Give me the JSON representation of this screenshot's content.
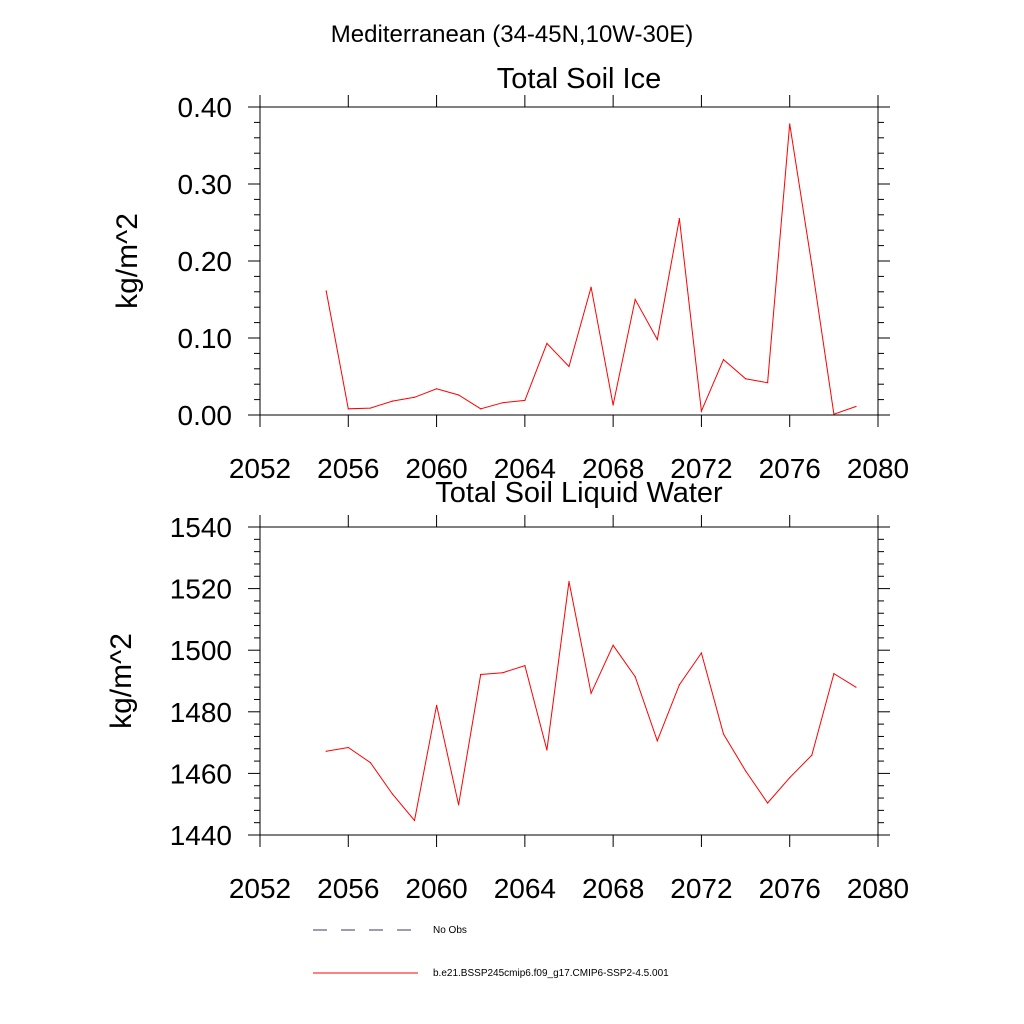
{
  "figure": {
    "title": "Mediterranean (34-45N,10W-30E)"
  },
  "legend": {
    "entries": [
      {
        "label": "No Obs",
        "style": "dashed",
        "color": "#3a3a6a"
      },
      {
        "label": "b.e21.BSSP245cmip6.f09_g17.CMIP6-SSP2-4.5.001",
        "style": "solid",
        "color": "#ff0000"
      }
    ]
  },
  "chart_data": [
    {
      "type": "line",
      "title": "Total Soil Ice",
      "xlabel": "",
      "ylabel": "kg/m^2",
      "xlim": [
        2052,
        2080
      ],
      "ylim": [
        0,
        0.4
      ],
      "xticks": [
        "2052",
        "2056",
        "2060",
        "2064",
        "2068",
        "2072",
        "2076",
        "2080"
      ],
      "yticks": [
        "0.00",
        "0.10",
        "0.20",
        "0.30",
        "0.40"
      ],
      "grid": false,
      "x": [
        2055,
        2056,
        2057,
        2058,
        2059,
        2060,
        2061,
        2062,
        2063,
        2064,
        2065,
        2066,
        2067,
        2068,
        2069,
        2070,
        2071,
        2072,
        2073,
        2074,
        2075,
        2076,
        2077,
        2078,
        2079
      ],
      "series": [
        {
          "name": "b.e21.BSSP245cmip6.f09_g17.CMIP6-SSP2-4.5.001",
          "color": "#ff0000",
          "values": [
            0.161,
            0.008,
            0.009,
            0.018,
            0.023,
            0.034,
            0.026,
            0.008,
            0.016,
            0.019,
            0.093,
            0.063,
            0.166,
            0.013,
            0.15,
            0.098,
            0.255,
            0.005,
            0.072,
            0.047,
            0.042,
            0.378,
            0.195,
            0.001,
            0.011
          ]
        }
      ]
    },
    {
      "type": "line",
      "title": "Total Soil Liquid Water",
      "xlabel": "",
      "ylabel": "kg/m^2",
      "xlim": [
        2052,
        2080
      ],
      "ylim": [
        1440,
        1540
      ],
      "xticks": [
        "2052",
        "2056",
        "2060",
        "2064",
        "2068",
        "2072",
        "2076",
        "2080"
      ],
      "yticks": [
        "1440",
        "1460",
        "1480",
        "1500",
        "1520",
        "1540"
      ],
      "grid": false,
      "x": [
        2055,
        2056,
        2057,
        2058,
        2059,
        2060,
        2061,
        2062,
        2063,
        2064,
        2065,
        2066,
        2067,
        2068,
        2069,
        2070,
        2071,
        2072,
        2073,
        2074,
        2075,
        2076,
        2077,
        2078,
        2079
      ],
      "series": [
        {
          "name": "b.e21.BSSP245cmip6.f09_g17.CMIP6-SSP2-4.5.001",
          "color": "#ff0000",
          "values": [
            1467.2,
            1468.4,
            1463.5,
            1453.3,
            1444.7,
            1482.1,
            1449.8,
            1492.1,
            1492.7,
            1495.0,
            1467.6,
            1522.3,
            1486.0,
            1501.6,
            1491.4,
            1470.6,
            1488.8,
            1499.1,
            1472.8,
            1460.8,
            1450.4,
            1458.6,
            1465.9,
            1492.4,
            1488.0
          ]
        }
      ]
    }
  ]
}
